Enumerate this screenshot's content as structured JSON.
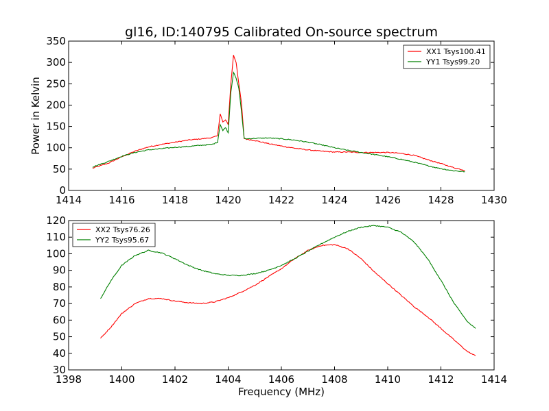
{
  "title": "gl16, ID:140795 Calibrated On-source spectrum",
  "xlabel": "Frequency (MHz)",
  "chart_data": [
    {
      "type": "line",
      "title": "gl16, ID:140795 Calibrated On-source spectrum",
      "xlabel": "",
      "ylabel": "Power in Kelvin",
      "xlim": [
        1414,
        1430
      ],
      "ylim": [
        0,
        350
      ],
      "xticks": [
        "1414",
        "1416",
        "1418",
        "1420",
        "1422",
        "1424",
        "1426",
        "1428",
        "1430"
      ],
      "yticks": [
        "0",
        "50",
        "100",
        "150",
        "200",
        "250",
        "300",
        "350"
      ],
      "legend_position": "top-right",
      "series": [
        {
          "name": "XX1 Tsys100.41",
          "color": "#ff0000",
          "x": [
            1414.9,
            1415.5,
            1416.0,
            1416.5,
            1417.0,
            1417.5,
            1418.0,
            1418.5,
            1419.0,
            1419.4,
            1419.6,
            1419.7,
            1419.8,
            1419.9,
            1420.0,
            1420.1,
            1420.2,
            1420.3,
            1420.4,
            1420.5,
            1420.6,
            1420.7,
            1421.0,
            1421.5,
            1422.0,
            1422.5,
            1423.0,
            1423.5,
            1424.0,
            1424.5,
            1425.0,
            1425.5,
            1426.0,
            1426.5,
            1427.0,
            1427.5,
            1428.0,
            1428.5,
            1428.9
          ],
          "y": [
            52,
            64,
            79,
            92,
            102,
            108,
            113,
            118,
            121,
            124,
            128,
            180,
            160,
            165,
            155,
            250,
            317,
            300,
            250,
            205,
            122,
            120,
            117,
            110,
            104,
            99,
            95,
            92,
            90,
            90,
            89,
            89,
            89,
            87,
            82,
            72,
            63,
            53,
            47
          ]
        },
        {
          "name": "YY1 Tsys99.20",
          "color": "#008000",
          "x": [
            1414.9,
            1415.5,
            1416.0,
            1416.5,
            1417.0,
            1417.5,
            1418.0,
            1418.5,
            1419.0,
            1419.4,
            1419.6,
            1419.7,
            1419.8,
            1419.9,
            1420.0,
            1420.1,
            1420.2,
            1420.3,
            1420.4,
            1420.5,
            1420.6,
            1420.7,
            1421.0,
            1421.5,
            1422.0,
            1422.5,
            1423.0,
            1423.5,
            1424.0,
            1424.5,
            1425.0,
            1425.5,
            1426.0,
            1426.5,
            1427.0,
            1427.5,
            1428.0,
            1428.5,
            1428.9
          ],
          "y": [
            55,
            68,
            80,
            89,
            95,
            98,
            101,
            103,
            106,
            108,
            113,
            155,
            140,
            148,
            135,
            230,
            277,
            262,
            240,
            185,
            122,
            121,
            122,
            123,
            121,
            118,
            113,
            107,
            100,
            94,
            89,
            84,
            79,
            73,
            66,
            58,
            51,
            46,
            44
          ]
        }
      ]
    },
    {
      "type": "line",
      "title": "",
      "xlabel": "Frequency (MHz)",
      "ylabel": "",
      "xlim": [
        1398,
        1414
      ],
      "ylim": [
        30,
        120
      ],
      "xticks": [
        "1398",
        "1400",
        "1402",
        "1404",
        "1406",
        "1408",
        "1410",
        "1412",
        "1414"
      ],
      "yticks": [
        "30",
        "40",
        "50",
        "60",
        "70",
        "80",
        "90",
        "100",
        "110",
        "120"
      ],
      "legend_position": "top-left",
      "series": [
        {
          "name": "XX2 Tsys76.26",
          "color": "#ff0000",
          "x": [
            1399.2,
            1399.6,
            1400.0,
            1400.5,
            1401.0,
            1401.5,
            1402.0,
            1402.5,
            1403.0,
            1403.5,
            1404.0,
            1404.5,
            1405.0,
            1405.5,
            1406.0,
            1406.5,
            1407.0,
            1407.5,
            1408.0,
            1408.5,
            1409.0,
            1409.5,
            1410.0,
            1410.5,
            1411.0,
            1411.5,
            1412.0,
            1412.5,
            1413.0,
            1413.3
          ],
          "y": [
            49,
            56,
            64,
            70,
            73,
            73,
            71.5,
            70.5,
            70,
            71,
            73.5,
            77,
            81,
            86,
            91,
            97,
            102,
            105,
            105.5,
            103,
            97,
            89,
            82,
            75,
            68,
            62,
            55,
            48,
            41,
            38.5
          ]
        },
        {
          "name": "YY2 Tsys95.67",
          "color": "#008000",
          "x": [
            1399.2,
            1399.6,
            1400.0,
            1400.5,
            1401.0,
            1401.5,
            1402.0,
            1402.5,
            1403.0,
            1403.5,
            1404.0,
            1404.5,
            1405.0,
            1405.5,
            1406.0,
            1406.5,
            1407.0,
            1407.5,
            1408.0,
            1408.5,
            1409.0,
            1409.5,
            1410.0,
            1410.5,
            1411.0,
            1411.5,
            1412.0,
            1412.5,
            1413.0,
            1413.3
          ],
          "y": [
            73,
            84,
            93,
            99,
            102,
            100.5,
            97,
            93,
            90,
            88,
            87,
            87,
            88,
            90,
            93,
            97,
            101.5,
            106,
            110,
            113.5,
            116,
            117,
            116,
            113,
            107,
            97,
            84,
            70,
            59,
            55
          ]
        }
      ]
    }
  ]
}
